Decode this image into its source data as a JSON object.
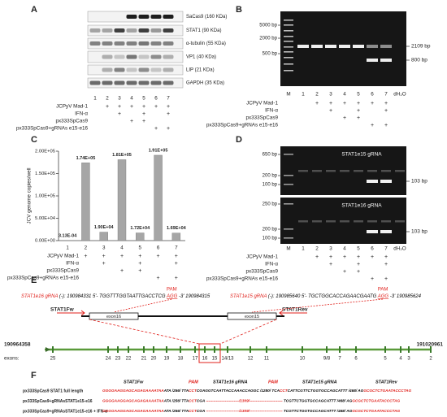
{
  "figure": {
    "A": {
      "letter": "A",
      "blots": [
        "SaCas9 (160 KDa)",
        "STAT1 (90 KDa)",
        "α-tubulin (55 KDa)",
        "VP1 (40 KDa)",
        "LIP (21 KDa)",
        "GAPDH (35 KDa)"
      ],
      "lanes": [
        "1",
        "2",
        "3",
        "4",
        "5",
        "6",
        "7"
      ],
      "conditions": [
        {
          "label": "JCPyV Mad-1",
          "signs": [
            null,
            "+",
            "+",
            "+",
            "+",
            "+",
            "+"
          ]
        },
        {
          "label": "IFN-α",
          "signs": [
            null,
            null,
            "+",
            null,
            "+",
            null,
            "+"
          ]
        },
        {
          "label": "px333SpCas9",
          "signs": [
            null,
            null,
            null,
            "+",
            "+",
            null,
            null
          ]
        },
        {
          "label": "px333SpCas9+gRNAs e15-e16",
          "signs": [
            null,
            null,
            null,
            null,
            null,
            "+",
            "+"
          ]
        }
      ]
    },
    "B": {
      "letter": "B",
      "ladder": [
        "5000 bp",
        "2000 bp",
        "500 bp"
      ],
      "bands": [
        "2109 bp",
        "800 bp"
      ],
      "lanes": [
        "M",
        "1",
        "2",
        "3",
        "4",
        "5",
        "6",
        "7",
        "dH₂O"
      ],
      "conditions": [
        {
          "label": "JCPyV Mad-1",
          "signs": [
            null,
            "+",
            "+",
            "+",
            "+",
            "+",
            "+"
          ]
        },
        {
          "label": "IFN-α",
          "signs": [
            null,
            null,
            "+",
            null,
            "+",
            null,
            "+"
          ]
        },
        {
          "label": "px333SpCas9",
          "signs": [
            null,
            null,
            null,
            "+",
            "+",
            null,
            null
          ]
        },
        {
          "label": "px333SpCas9+gRNAs e15-e16",
          "signs": [
            null,
            null,
            null,
            null,
            null,
            "+",
            "+"
          ]
        }
      ]
    },
    "C": {
      "letter": "C",
      "conditions": [
        {
          "label": "JCPyV Mad-1",
          "signs": [
            null,
            "+",
            "+",
            "+",
            "+",
            "+",
            "+"
          ]
        },
        {
          "label": "IFN-α",
          "signs": [
            null,
            null,
            "+",
            null,
            "+",
            null,
            "+"
          ]
        },
        {
          "label": "px333SpCas9",
          "signs": [
            null,
            null,
            null,
            "+",
            "+",
            null,
            null
          ]
        },
        {
          "label": "px333SpCas9+gRNAs e15-e16",
          "signs": [
            null,
            null,
            null,
            null,
            null,
            "+",
            "+"
          ]
        }
      ]
    },
    "D": {
      "letter": "D",
      "gels": [
        {
          "title": "STAT1e15 gRNA",
          "ladder": [
            "650 bp",
            "200 bp",
            "100 bp"
          ],
          "band": "103 bp"
        },
        {
          "title": "STAT1e16 gRNA",
          "ladder": [
            "250 bp",
            "200 bp",
            "100 bp"
          ],
          "band": "103 bp"
        }
      ],
      "lanes": [
        "M",
        "1",
        "2",
        "3",
        "4",
        "5",
        "6",
        "7",
        "dH₂O"
      ],
      "conditions": [
        {
          "label": "JCPyV Mad-1",
          "signs": [
            null,
            "+",
            "+",
            "+",
            "+",
            "+",
            "+"
          ]
        },
        {
          "label": "IFN-α",
          "signs": [
            null,
            null,
            "+",
            null,
            "+",
            null,
            "+"
          ]
        },
        {
          "label": "px333SpCas9",
          "signs": [
            null,
            null,
            null,
            "+",
            "+",
            null,
            null
          ]
        },
        {
          "label": "px333SpCas9+gRNAs e15-e16",
          "signs": [
            null,
            null,
            null,
            null,
            null,
            "+",
            "+"
          ]
        }
      ]
    },
    "E": {
      "letter": "E",
      "grnas": [
        {
          "pam": "PAM",
          "segments": [
            {
              "text": "STAT1e16 gRNA",
              "color": "#e0201b"
            },
            {
              "text": " (-): 190984331 5'- TGGTTTGGTAATTGACCTCG ",
              "color": "#000000"
            },
            {
              "text": "AGG",
              "color": "#e0201b"
            },
            {
              "text": " -3' 190984315",
              "color": "#000000"
            }
          ]
        },
        {
          "pam": "PAM",
          "segments": [
            {
              "text": "STAT1e15 gRNA",
              "color": "#e0201b"
            },
            {
              "text": " (-): 190985640 5'- TGCTGGCACCAGAACGAATG ",
              "color": "#000000"
            },
            {
              "text": "AGG",
              "color": "#e0201b"
            },
            {
              "text": " -3' 190985624",
              "color": "#000000"
            }
          ]
        }
      ],
      "primers": [
        "STAT1Fw",
        "STAT1Rev"
      ],
      "exon_boxes": [
        "exon16",
        "exon15"
      ],
      "chrom_start": "190964358",
      "chrom_end": "191020961",
      "exons_label": "exons:",
      "exons": [
        "25",
        "24",
        "23",
        "22",
        "21",
        "20",
        "19",
        "18",
        "17",
        "16",
        "15",
        "14/13",
        "12",
        "11",
        "10",
        "9/8",
        "7",
        "6",
        "5",
        "4",
        "3",
        "2"
      ]
    },
    "F": {
      "letter": "F",
      "headers": [
        "STAT1Fw",
        "PAM",
        "STAT1e16 gRNA",
        "PAM",
        "STAT1e15 gRNA",
        "STAT1Rev"
      ],
      "rows": [
        {
          "label": "px333SpCas9 STAT1 full length",
          "segments": [
            {
              "text": "GGGGAAGGAGCAGAGAAAATAA",
              "color": "#e0201b"
            },
            {
              "text": "ATA /256/ TTA",
              "color": "#000000"
            },
            {
              "text": "CCT",
              "color": "#e0201b"
            },
            {
              "text": "CGAGGTCAATTACCAAACCAGGC /1280/ TCA",
              "color": "#000000"
            },
            {
              "text": "CCT",
              "color": "#e0201b"
            },
            {
              "text": "CATTCGTTCTGGTGCCAGCATTT /468/ AG",
              "color": "#000000"
            },
            {
              "text": "GCGCTCTGAATACCCTAG",
              "color": "#e0201b"
            }
          ]
        },
        {
          "label": "px333SpCas9+gRNAsSTAT1e15-e16",
          "segments": [
            {
              "text": "GGGGAAGGAGCAGAGAAAATAA",
              "color": "#e0201b"
            },
            {
              "text": "ATA /256/ TTA",
              "color": "#000000"
            },
            {
              "text": "CCT",
              "color": "#e0201b"
            },
            {
              "text": "CGA",
              "color": "#000000"
            },
            {
              "text": " --------------------------/1309/-------------------------- ",
              "color": "#e0201b"
            },
            {
              "text": "TCGTTCTGGTGCCAGCATTT /468/ AG",
              "color": "#000000"
            },
            {
              "text": "GCGCTCTGAATACCCTAG",
              "color": "#e0201b"
            }
          ]
        },
        {
          "label": "px333SpCas9+gRNAsSTAT1e15-e16 + IFN-α",
          "segments": [
            {
              "text": "GGGGAAGGAGCAGAGAAAATAA",
              "color": "#e0201b"
            },
            {
              "text": "ATA /256/ TTA",
              "color": "#000000"
            },
            {
              "text": "CCT",
              "color": "#e0201b"
            },
            {
              "text": "CGA",
              "color": "#000000"
            },
            {
              "text": " --------------------------/1309/-------------------------- ",
              "color": "#e0201b"
            },
            {
              "text": "TCGTTCTGGTGCCAGCATTT /468/ AG",
              "color": "#000000"
            },
            {
              "text": "GCGCTCTGAATACCCTAG",
              "color": "#e0201b"
            }
          ]
        }
      ]
    }
  },
  "chart_data": {
    "type": "bar",
    "ylabel": "JCV genome copies/well",
    "categories": [
      "1",
      "2",
      "3",
      "4",
      "5",
      "6",
      "7"
    ],
    "values": [
      0.000313,
      174000,
      19000,
      181000,
      17200,
      191000,
      16900
    ],
    "value_labels": [
      "3.13E-04",
      "1.74E+05",
      "1.90E+04",
      "1.81E+05",
      "1.72E+04",
      "1.91E+05",
      "1.69E+04"
    ],
    "color": "#a6a6a6",
    "ylim": [
      0,
      200000
    ],
    "yticks": [
      {
        "value": 0,
        "label": "0.00E+00"
      },
      {
        "value": 50000,
        "label": "5.00E+04"
      },
      {
        "value": 100000,
        "label": "1.00E+05"
      },
      {
        "value": 150000,
        "label": "1.50E+05"
      },
      {
        "value": 200000,
        "label": "2.00E+05"
      }
    ]
  }
}
